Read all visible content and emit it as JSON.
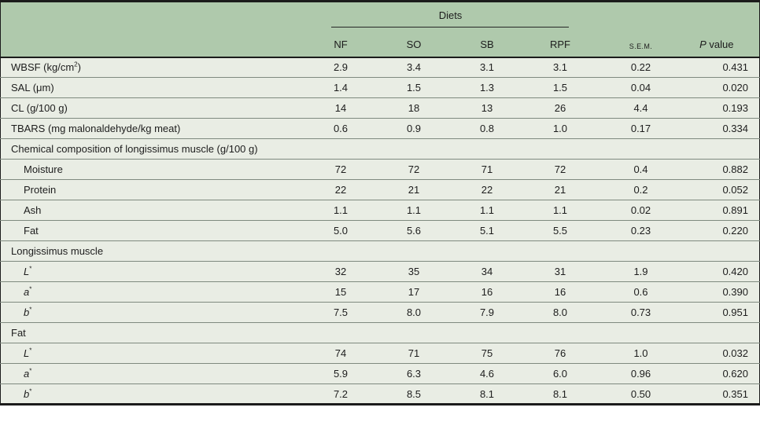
{
  "table": {
    "colors": {
      "header_bg": "#afc9ac",
      "body_bg": "#e9ede4",
      "row_divider": "#7f8a7f",
      "frame": "#1b1b1b",
      "text": "#1d1d1d"
    },
    "header": {
      "group_label": "Diets",
      "diet_columns": [
        "NF",
        "SO",
        "SB",
        "RPF"
      ],
      "sem_label": "S.E.M.",
      "p_label_italic": "P",
      "p_label_rest": " value"
    },
    "rows": [
      {
        "type": "data",
        "indent": false,
        "label": [
          {
            "t": "WBSF (kg/cm"
          },
          {
            "t": "2",
            "sup": true
          },
          {
            "t": ")"
          }
        ],
        "values": [
          "2.9",
          "3.4",
          "3.1",
          "3.1"
        ],
        "sem": "0.22",
        "p": "0.431"
      },
      {
        "type": "data",
        "indent": false,
        "label": [
          {
            "t": "SAL (μm)"
          }
        ],
        "values": [
          "1.4",
          "1.5",
          "1.3",
          "1.5"
        ],
        "sem": "0.04",
        "p": "0.020"
      },
      {
        "type": "data",
        "indent": false,
        "label": [
          {
            "t": "CL (g/100 g)"
          }
        ],
        "values": [
          "14",
          "18",
          "13",
          "26"
        ],
        "sem": "4.4",
        "p": "0.193"
      },
      {
        "type": "data",
        "indent": false,
        "label": [
          {
            "t": "TBARS (mg malonaldehyde/kg meat)"
          }
        ],
        "values": [
          "0.6",
          "0.9",
          "0.8",
          "1.0"
        ],
        "sem": "0.17",
        "p": "0.334"
      },
      {
        "type": "section",
        "label": [
          {
            "t": "Chemical composition of longissimus muscle (g/100 g)"
          }
        ]
      },
      {
        "type": "data",
        "indent": true,
        "label": [
          {
            "t": "Moisture"
          }
        ],
        "values": [
          "72",
          "72",
          "71",
          "72"
        ],
        "sem": "0.4",
        "p": "0.882"
      },
      {
        "type": "data",
        "indent": true,
        "label": [
          {
            "t": "Protein"
          }
        ],
        "values": [
          "22",
          "21",
          "22",
          "21"
        ],
        "sem": "0.2",
        "p": "0.052"
      },
      {
        "type": "data",
        "indent": true,
        "label": [
          {
            "t": "Ash"
          }
        ],
        "values": [
          "1.1",
          "1.1",
          "1.1",
          "1.1"
        ],
        "sem": "0.02",
        "p": "0.891"
      },
      {
        "type": "data",
        "indent": true,
        "label": [
          {
            "t": "Fat"
          }
        ],
        "values": [
          "5.0",
          "5.6",
          "5.1",
          "5.5"
        ],
        "sem": "0.23",
        "p": "0.220"
      },
      {
        "type": "section",
        "label": [
          {
            "t": "Longissimus muscle"
          }
        ]
      },
      {
        "type": "data",
        "indent": true,
        "label": [
          {
            "t": "L",
            "italic": true
          },
          {
            "t": "*",
            "sup": true
          }
        ],
        "values": [
          "32",
          "35",
          "34",
          "31"
        ],
        "sem": "1.9",
        "p": "0.420"
      },
      {
        "type": "data",
        "indent": true,
        "label": [
          {
            "t": "a",
            "italic": true
          },
          {
            "t": "*",
            "sup": true
          }
        ],
        "values": [
          "15",
          "17",
          "16",
          "16"
        ],
        "sem": "0.6",
        "p": "0.390"
      },
      {
        "type": "data",
        "indent": true,
        "label": [
          {
            "t": "b",
            "italic": true
          },
          {
            "t": "*",
            "sup": true
          }
        ],
        "values": [
          "7.5",
          "8.0",
          "7.9",
          "8.0"
        ],
        "sem": "0.73",
        "p": "0.951"
      },
      {
        "type": "section",
        "label": [
          {
            "t": "Fat"
          }
        ]
      },
      {
        "type": "data",
        "indent": true,
        "label": [
          {
            "t": "L",
            "italic": true
          },
          {
            "t": "*",
            "sup": true
          }
        ],
        "values": [
          "74",
          "71",
          "75",
          "76"
        ],
        "sem": "1.0",
        "p": "0.032"
      },
      {
        "type": "data",
        "indent": true,
        "label": [
          {
            "t": "a",
            "italic": true
          },
          {
            "t": "*",
            "sup": true
          }
        ],
        "values": [
          "5.9",
          "6.3",
          "4.6",
          "6.0"
        ],
        "sem": "0.96",
        "p": "0.620"
      },
      {
        "type": "data",
        "indent": true,
        "label": [
          {
            "t": "b",
            "italic": true
          },
          {
            "t": "*",
            "sup": true
          }
        ],
        "values": [
          "7.2",
          "8.5",
          "8.1",
          "8.1"
        ],
        "sem": "0.50",
        "p": "0.351"
      }
    ]
  }
}
